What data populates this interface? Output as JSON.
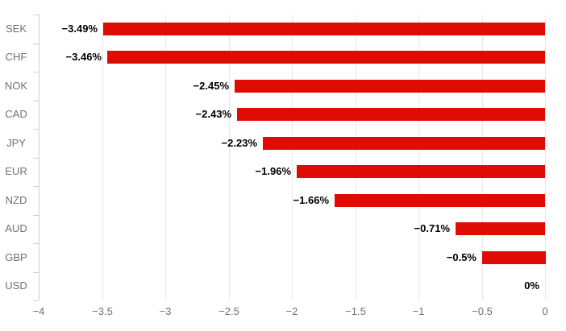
{
  "chart_data": {
    "type": "bar",
    "orientation": "horizontal",
    "title": "",
    "categories": [
      "SEK",
      "CHF",
      "NOK",
      "CAD",
      "JPY",
      "EUR",
      "NZD",
      "AUD",
      "GBP",
      "USD"
    ],
    "values": [
      -3.49,
      -3.46,
      -2.45,
      -2.43,
      -2.23,
      -1.96,
      -1.66,
      -0.71,
      -0.5,
      0
    ],
    "value_labels": [
      "−3.49%",
      "−3.46%",
      "−2.45%",
      "−2.43%",
      "−2.23%",
      "−1.96%",
      "−1.66%",
      "−0.71%",
      "−0.5%",
      "0%"
    ],
    "x_ticks": [
      -4,
      -3.5,
      -3,
      -2.5,
      -2,
      -1.5,
      -1,
      -0.5,
      0
    ],
    "x_tick_labels": [
      "−4",
      "−3.5",
      "−3",
      "−2.5",
      "−2",
      "−1.5",
      "−1",
      "−0.5",
      "0"
    ],
    "xlim": [
      -4,
      0
    ],
    "grid": true,
    "legend": false,
    "colors": {
      "bar": "#e00c04",
      "grid": "#e8e8e8",
      "axis": "#ccd0d7",
      "category_label": "#6e7079",
      "tick_label": "#6e7079",
      "value_label": "#000000",
      "background": "#ffffff"
    }
  }
}
